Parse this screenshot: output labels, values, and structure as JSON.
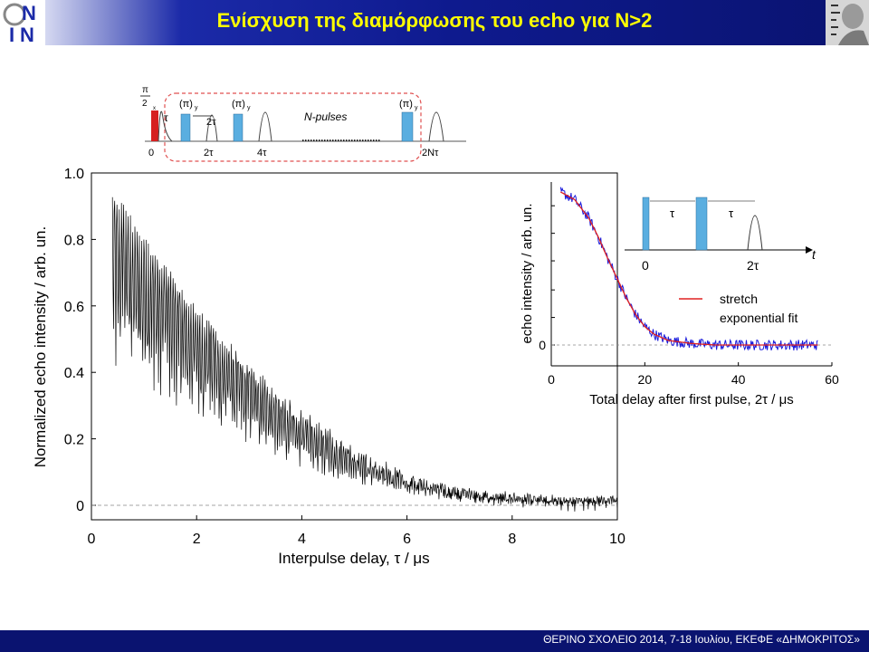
{
  "header": {
    "title": "Ενίσχυση της διαμόρφωσης του echo για N>2",
    "logo_letters": [
      "N",
      "I",
      "N"
    ]
  },
  "footer": {
    "text": "ΘΕΡΙΝΟ ΣΧΟΛΕΙΟ 2014, 7-18 Ιουλίου, ΕΚΕΦΕ «ΔΗΜΟΚΡΙΤΟΣ»"
  },
  "pulse_diagram": {
    "first_pulse_label": "(π/2)x",
    "first_pulse_num": "π",
    "first_pulse_den": "2",
    "first_pulse_sub": "x",
    "pi_pulse_label": "(π)",
    "pi_pulse_sub": "y",
    "tau_label": "τ",
    "two_tau_label": "2τ",
    "n_pulses_label": "N-pulses",
    "tick_labels": [
      "0",
      "2τ",
      "4τ",
      "2Nτ"
    ]
  },
  "chart_data": [
    {
      "type": "line",
      "xlabel": "Interpulse delay, τ / μs",
      "ylabel": "Normalized echo intensity / arb. un.",
      "xlim": [
        0,
        10
      ],
      "ylim": [
        0,
        1.0
      ],
      "xticks": [
        "0",
        "2",
        "4",
        "6",
        "8",
        "10"
      ],
      "yticks": [
        "0",
        "0.2",
        "0.4",
        "0.6",
        "0.8",
        "1.0"
      ],
      "baseline_dashed": 0,
      "series": [
        {
          "color": "#000000",
          "envelope_x": [
            0.4,
            1,
            2,
            3,
            4,
            5,
            6,
            7,
            8,
            9,
            10
          ],
          "envelope_upper": [
            0.96,
            0.82,
            0.6,
            0.43,
            0.29,
            0.18,
            0.1,
            0.06,
            0.04,
            0.03,
            0.03
          ],
          "envelope_lower": [
            0.28,
            0.28,
            0.2,
            0.14,
            0.08,
            0.04,
            0.02,
            0.0,
            -0.005,
            -0.005,
            -0.005
          ]
        }
      ]
    },
    {
      "type": "line",
      "xlabel": "Total delay after first pulse, 2τ / μs",
      "ylabel": "echo intensity / arb. un.",
      "xlim": [
        0,
        60
      ],
      "xticks": [
        "0",
        "20",
        "40",
        "60"
      ],
      "yticks": [
        "0"
      ],
      "baseline_dashed": 0,
      "legend": {
        "placement": "center-right",
        "entries": [
          "stretch",
          "exponential fit"
        ]
      },
      "series": [
        {
          "name": "data",
          "color": "#1a1adb",
          "x": [
            2,
            5,
            8,
            10,
            12,
            14,
            16,
            18,
            20,
            22,
            25,
            30,
            35,
            40,
            45,
            50,
            55,
            57
          ],
          "y": [
            1.0,
            0.95,
            0.83,
            0.71,
            0.57,
            0.44,
            0.31,
            0.2,
            0.12,
            0.07,
            0.03,
            0.01,
            0.0,
            0.0,
            0.0,
            0.0,
            0.0,
            0.0
          ]
        },
        {
          "name": "stretch exponential fit",
          "color": "#e02020",
          "x": [
            2,
            5,
            8,
            10,
            12,
            14,
            16,
            18,
            20,
            22,
            25,
            30,
            35,
            40,
            45,
            50,
            55,
            57
          ],
          "y": [
            1.0,
            0.95,
            0.83,
            0.71,
            0.57,
            0.44,
            0.31,
            0.2,
            0.12,
            0.07,
            0.03,
            0.01,
            0.0,
            0.0,
            0.0,
            0.0,
            0.0,
            0.0
          ]
        }
      ],
      "inset": {
        "labels": [
          "τ",
          "τ",
          "0",
          "2τ",
          "t"
        ]
      }
    }
  ]
}
